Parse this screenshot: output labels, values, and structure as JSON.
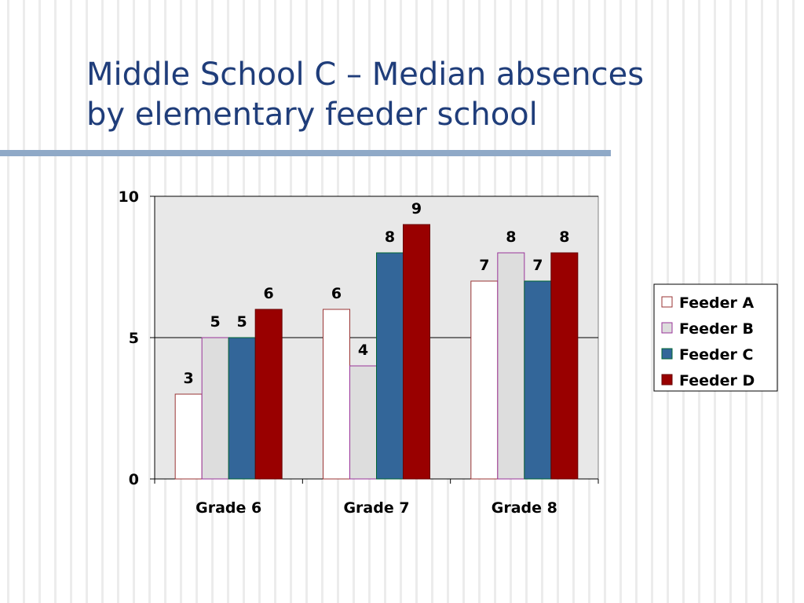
{
  "slide": {
    "title_line1": "Middle School C – Median absences",
    "title_line2": "by elementary feeder school"
  },
  "chart_data": {
    "type": "bar",
    "categories": [
      "Grade 6",
      "Grade 7",
      "Grade 8"
    ],
    "series": [
      {
        "name": "Feeder A",
        "values": [
          3,
          6,
          7
        ],
        "fill": "#ffffff",
        "stroke": "#993333"
      },
      {
        "name": "Feeder B",
        "values": [
          5,
          4,
          8
        ],
        "fill": "#dddddd",
        "stroke": "#993399"
      },
      {
        "name": "Feeder C",
        "values": [
          5,
          8,
          7
        ],
        "fill": "#336699",
        "stroke": "#006633"
      },
      {
        "name": "Feeder D",
        "values": [
          6,
          9,
          8
        ],
        "fill": "#990000",
        "stroke": "#660000"
      }
    ],
    "ylim": [
      0,
      10
    ],
    "yticks": [
      0,
      5,
      10
    ],
    "grid": true,
    "plot_background": "#e8e8e8",
    "legend_position": "right",
    "data_labels": true
  }
}
